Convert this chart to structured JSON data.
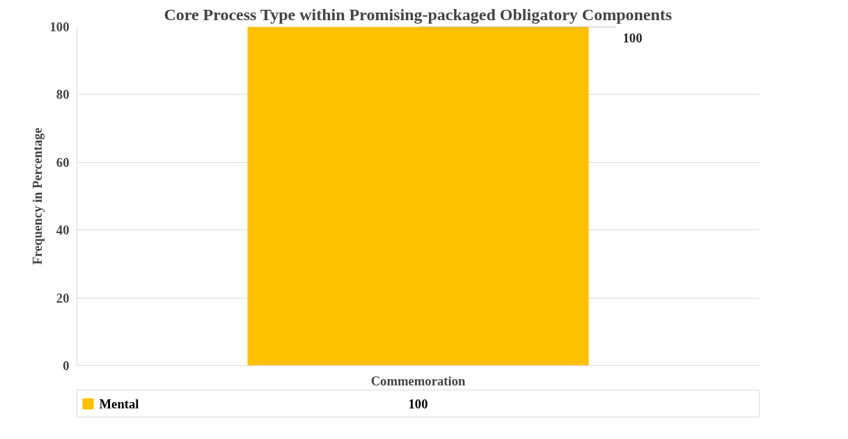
{
  "chart_data": {
    "type": "bar",
    "title": "Core Process Type within Promising-packaged Obligatory Components",
    "ylabel": "Frequency in Percentage",
    "categories": [
      "Commemoration"
    ],
    "series": [
      {
        "name": "Mental",
        "color": "#ffc000",
        "values": [
          100
        ]
      }
    ],
    "ylim": [
      0,
      100
    ],
    "yticks": [
      0,
      20,
      40,
      60,
      80,
      100
    ],
    "grid": "y",
    "legend": "bottom",
    "data_labels": true,
    "annotations": [
      "100"
    ]
  }
}
